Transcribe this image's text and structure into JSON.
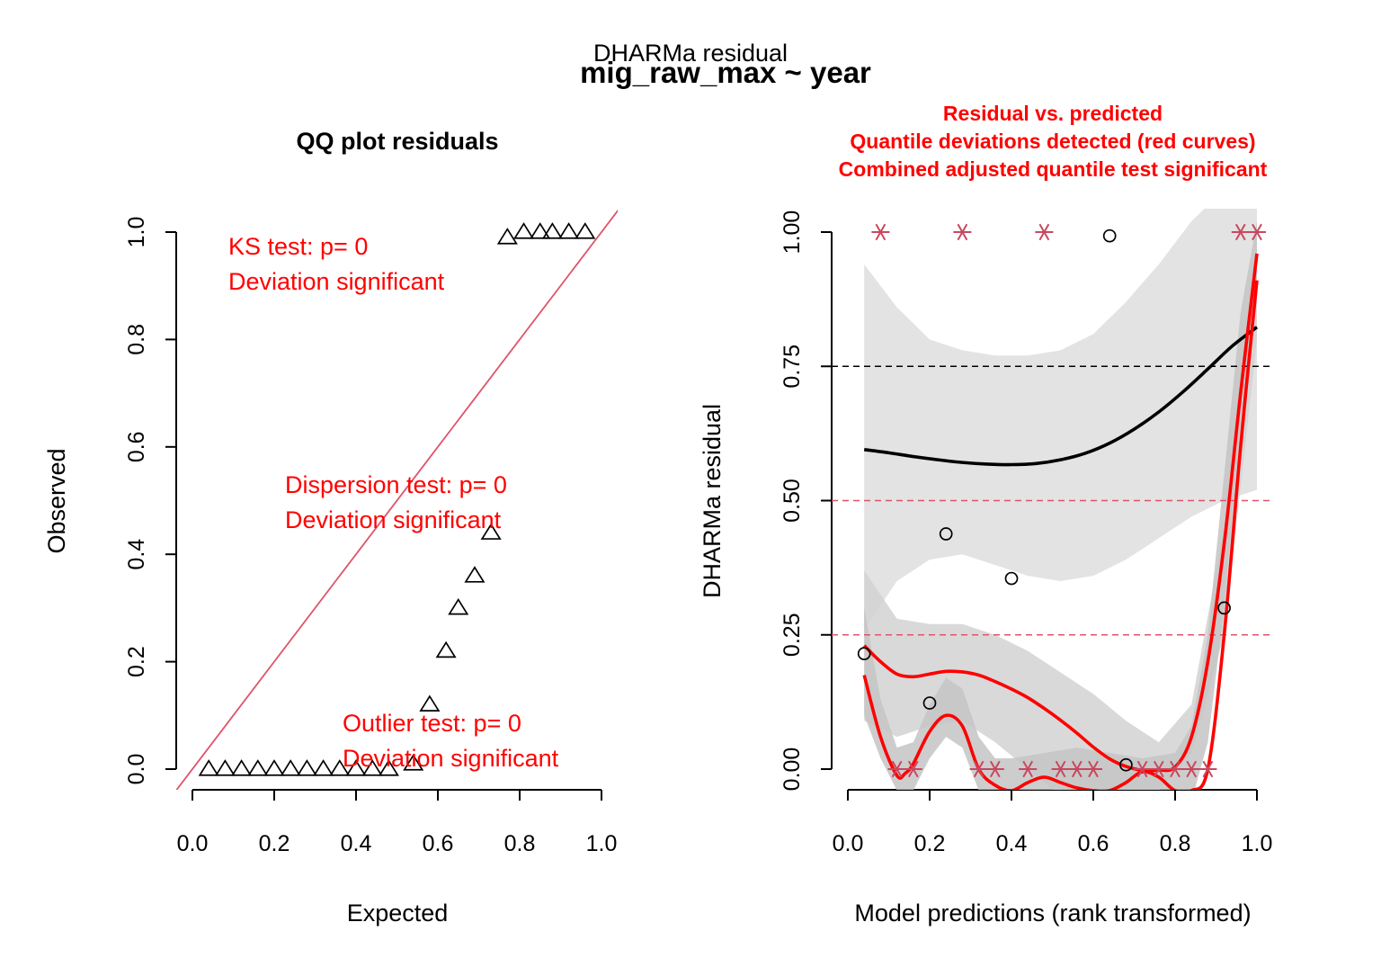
{
  "figure": {
    "suptitle": "DHARMa residual",
    "formula": "mig_raw_max ~ year"
  },
  "chart_data": [
    {
      "type": "scatter",
      "title": "QQ plot residuals",
      "xlabel": "Expected",
      "ylabel": "Observed",
      "xlim": [
        0,
        1
      ],
      "ylim": [
        0,
        1
      ],
      "xticks": [
        0.0,
        0.2,
        0.4,
        0.6,
        0.8,
        1.0
      ],
      "xtick_labels": [
        "0.0",
        "0.2",
        "0.4",
        "0.6",
        "0.8",
        "1.0"
      ],
      "yticks": [
        0.0,
        0.2,
        0.4,
        0.6,
        0.8,
        1.0
      ],
      "ytick_labels": [
        "0.0",
        "0.2",
        "0.4",
        "0.6",
        "0.8",
        "1.0"
      ],
      "marker": "triangle",
      "reference_line": {
        "slope": 1,
        "intercept": 0,
        "color": "#DF536B"
      },
      "points": [
        {
          "x": 0.04,
          "y": 0.0
        },
        {
          "x": 0.08,
          "y": 0.0
        },
        {
          "x": 0.12,
          "y": 0.0
        },
        {
          "x": 0.16,
          "y": 0.0
        },
        {
          "x": 0.2,
          "y": 0.0
        },
        {
          "x": 0.24,
          "y": 0.0
        },
        {
          "x": 0.28,
          "y": 0.0
        },
        {
          "x": 0.32,
          "y": 0.0
        },
        {
          "x": 0.36,
          "y": 0.0
        },
        {
          "x": 0.4,
          "y": 0.0
        },
        {
          "x": 0.44,
          "y": 0.0
        },
        {
          "x": 0.48,
          "y": 0.0
        },
        {
          "x": 0.54,
          "y": 0.01
        },
        {
          "x": 0.58,
          "y": 0.12
        },
        {
          "x": 0.62,
          "y": 0.22
        },
        {
          "x": 0.65,
          "y": 0.3
        },
        {
          "x": 0.69,
          "y": 0.36
        },
        {
          "x": 0.73,
          "y": 0.44
        },
        {
          "x": 0.77,
          "y": 0.99
        },
        {
          "x": 0.81,
          "y": 1.0
        },
        {
          "x": 0.85,
          "y": 1.0
        },
        {
          "x": 0.88,
          "y": 1.0
        },
        {
          "x": 0.92,
          "y": 1.0
        },
        {
          "x": 0.96,
          "y": 1.0
        }
      ],
      "annotations": [
        {
          "lines": [
            "KS test: p= 0",
            "Deviation  significant"
          ],
          "color": "#FF0000"
        },
        {
          "lines": [
            "Dispersion test: p= 0",
            "Deviation  significant"
          ],
          "color": "#FF0000"
        },
        {
          "lines": [
            "Outlier test: p= 0",
            "Deviation  significant"
          ],
          "color": "#FF0000"
        }
      ]
    },
    {
      "type": "scatter",
      "title_lines": [
        "Residual vs. predicted",
        "Quantile deviations detected (red curves)",
        "Combined adjusted quantile test significant"
      ],
      "title_color": "#FF0000",
      "xlabel": "Model predictions (rank transformed)",
      "ylabel": "DHARMa residual",
      "xlim": [
        0,
        1
      ],
      "ylim": [
        0,
        1
      ],
      "xticks": [
        0.0,
        0.2,
        0.4,
        0.6,
        0.8,
        1.0
      ],
      "xtick_labels": [
        "0.0",
        "0.2",
        "0.4",
        "0.6",
        "0.8",
        "1.0"
      ],
      "yticks": [
        0.0,
        0.25,
        0.5,
        0.75,
        1.0
      ],
      "ytick_labels": [
        "0.00",
        "0.25",
        "0.50",
        "0.75",
        "1.00"
      ],
      "hlines": [
        {
          "y": 0.25,
          "color": "#DF536B"
        },
        {
          "y": 0.5,
          "color": "#DF536B"
        },
        {
          "y": 0.75,
          "color": "#000000"
        }
      ],
      "residual_points": [
        {
          "x": 0.04,
          "y": 0.215
        },
        {
          "x": 0.2,
          "y": 0.123
        },
        {
          "x": 0.24,
          "y": 0.438
        },
        {
          "x": 0.4,
          "y": 0.355
        },
        {
          "x": 0.64,
          "y": 0.993
        },
        {
          "x": 0.68,
          "y": 0.008
        },
        {
          "x": 0.92,
          "y": 0.3
        }
      ],
      "outlier_points": [
        {
          "x": 0.08,
          "y": 1.0
        },
        {
          "x": 0.28,
          "y": 1.0
        },
        {
          "x": 0.48,
          "y": 1.0
        },
        {
          "x": 0.96,
          "y": 1.0
        },
        {
          "x": 1.0,
          "y": 1.0
        },
        {
          "x": 0.12,
          "y": 0.0
        },
        {
          "x": 0.16,
          "y": 0.0
        },
        {
          "x": 0.32,
          "y": 0.0
        },
        {
          "x": 0.36,
          "y": 0.0
        },
        {
          "x": 0.44,
          "y": 0.0
        },
        {
          "x": 0.52,
          "y": 0.0
        },
        {
          "x": 0.56,
          "y": 0.0
        },
        {
          "x": 0.6,
          "y": 0.0
        },
        {
          "x": 0.72,
          "y": 0.0
        },
        {
          "x": 0.76,
          "y": 0.0
        },
        {
          "x": 0.8,
          "y": 0.0
        },
        {
          "x": 0.84,
          "y": 0.0
        },
        {
          "x": 0.88,
          "y": 0.0
        }
      ],
      "outlier_color": "#C8485F",
      "bands": [
        {
          "x": [
            0.04,
            0.12,
            0.2,
            0.28,
            0.36,
            0.44,
            0.52,
            0.6,
            0.68,
            0.76,
            0.84,
            0.92,
            1.0
          ],
          "upper": [
            0.94,
            0.86,
            0.8,
            0.78,
            0.77,
            0.77,
            0.78,
            0.81,
            0.87,
            0.94,
            1.02,
            1.08,
            1.15
          ],
          "lower": [
            0.26,
            0.35,
            0.39,
            0.4,
            0.38,
            0.36,
            0.35,
            0.36,
            0.39,
            0.43,
            0.47,
            0.5,
            0.52
          ],
          "color": "#DEDEDE"
        },
        {
          "x": [
            0.04,
            0.12,
            0.2,
            0.28,
            0.36,
            0.44,
            0.52,
            0.6,
            0.68,
            0.76,
            0.84,
            0.92,
            1.0
          ],
          "upper": [
            0.37,
            0.28,
            0.27,
            0.27,
            0.25,
            0.22,
            0.18,
            0.14,
            0.09,
            0.05,
            0.12,
            0.45,
            0.95
          ],
          "lower": [
            0.09,
            0.06,
            0.08,
            0.09,
            0.05,
            0.0,
            -0.05,
            -0.06,
            -0.06,
            -0.04,
            0.03,
            0.25,
            0.8
          ],
          "color": "#D2D2D2"
        },
        {
          "x": [
            0.04,
            0.08,
            0.12,
            0.16,
            0.2,
            0.24,
            0.28,
            0.32,
            0.36,
            0.4,
            0.48,
            0.56,
            0.64,
            0.72,
            0.8,
            0.84,
            0.88,
            0.92,
            0.96,
            1.0
          ],
          "upper": [
            0.3,
            0.13,
            0.04,
            0.05,
            0.12,
            0.17,
            0.15,
            0.06,
            0.02,
            0.02,
            0.03,
            0.04,
            0.03,
            0.02,
            0.03,
            0.08,
            0.25,
            0.55,
            0.85,
            1.02
          ],
          "lower": [
            0.1,
            0.02,
            -0.04,
            -0.04,
            0.02,
            0.06,
            0.04,
            -0.04,
            -0.06,
            -0.06,
            -0.06,
            -0.06,
            -0.06,
            -0.06,
            -0.06,
            -0.06,
            0.05,
            0.3,
            0.65,
            0.9
          ],
          "color": "#C4C4C4"
        }
      ],
      "curves": [
        {
          "name": "median",
          "color": "#000000",
          "x": [
            0.04,
            0.1,
            0.16,
            0.22,
            0.28,
            0.34,
            0.4,
            0.46,
            0.52,
            0.58,
            0.64,
            0.7,
            0.76,
            0.82,
            0.88,
            0.94,
            1.0
          ],
          "y": [
            0.595,
            0.589,
            0.582,
            0.576,
            0.571,
            0.568,
            0.567,
            0.569,
            0.576,
            0.588,
            0.607,
            0.633,
            0.665,
            0.703,
            0.745,
            0.788,
            0.823
          ]
        },
        {
          "name": "upper quantile",
          "color": "#FF0000",
          "x": [
            0.04,
            0.08,
            0.12,
            0.16,
            0.2,
            0.24,
            0.28,
            0.32,
            0.36,
            0.4,
            0.44,
            0.48,
            0.52,
            0.56,
            0.6,
            0.64,
            0.68,
            0.72,
            0.76,
            0.8,
            0.84,
            0.88,
            0.92,
            0.96,
            1.0
          ],
          "y": [
            0.23,
            0.2,
            0.177,
            0.172,
            0.177,
            0.182,
            0.181,
            0.175,
            0.163,
            0.149,
            0.133,
            0.113,
            0.091,
            0.067,
            0.041,
            0.019,
            0.005,
            -0.002,
            -0.002,
            0.004,
            0.06,
            0.2,
            0.42,
            0.7,
            0.96
          ]
        },
        {
          "name": "lower quantile",
          "color": "#FF0000",
          "x": [
            0.04,
            0.08,
            0.12,
            0.14,
            0.16,
            0.2,
            0.24,
            0.28,
            0.32,
            0.36,
            0.4,
            0.44,
            0.48,
            0.52,
            0.56,
            0.6,
            0.64,
            0.68,
            0.72,
            0.76,
            0.8,
            0.84,
            0.88,
            0.92,
            0.96,
            1.0
          ],
          "y": [
            0.175,
            0.06,
            -0.012,
            -0.008,
            0.01,
            0.07,
            0.1,
            0.08,
            0.0,
            -0.03,
            -0.04,
            -0.025,
            -0.015,
            -0.025,
            -0.035,
            -0.04,
            -0.04,
            -0.025,
            -0.005,
            -0.015,
            -0.04,
            -0.04,
            0.0,
            0.25,
            0.6,
            0.91
          ]
        }
      ]
    }
  ]
}
